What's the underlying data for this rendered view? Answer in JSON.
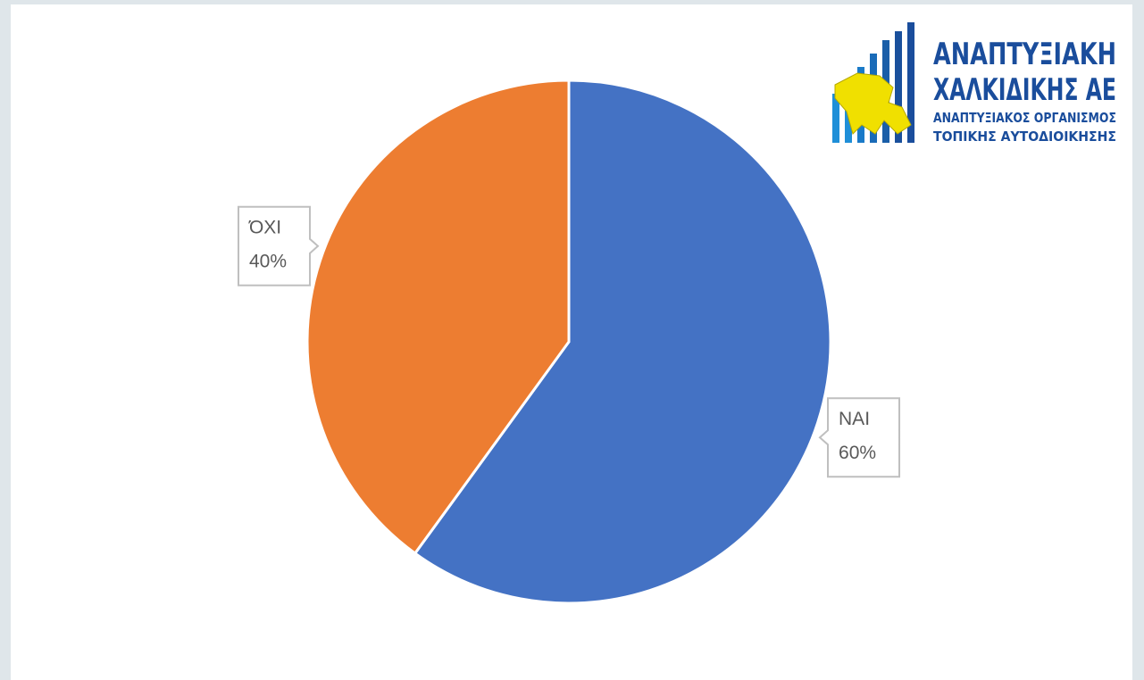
{
  "chart_data": {
    "type": "pie",
    "categories": [
      "ΝΑΙ",
      "ΌΧΙ"
    ],
    "values": [
      60,
      40
    ],
    "value_labels": [
      "60%",
      "40%"
    ],
    "colors": [
      "#4472c4",
      "#ed7d31"
    ]
  },
  "logo": {
    "lines": [
      "ΑΝΑΠΤΥΞΙΑΚΗ",
      "ΧΑΛΚΙΔΙΚΗΣ ΑΕ",
      "ΑΝΑΠΤΥΞΙΑΚΟΣ ΟΡΓΑΝΙΣΜΟΣ",
      "ΤΟΠΙΚΗΣ ΑΥΤΟΔΙΟΙΚΗΣΗΣ"
    ]
  }
}
